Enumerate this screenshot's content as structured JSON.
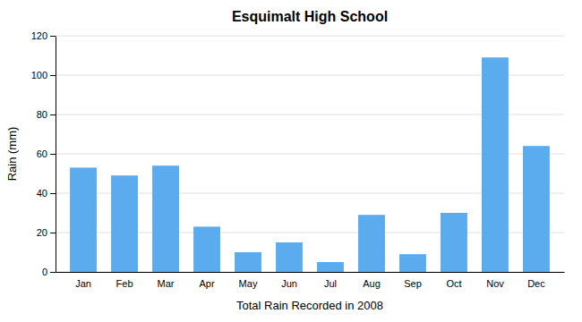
{
  "chart_data": {
    "type": "bar",
    "title": "Esquimalt High School",
    "xlabel": "Total Rain Recorded in 2008",
    "ylabel": "Rain (mm)",
    "categories": [
      "Jan",
      "Feb",
      "Mar",
      "Apr",
      "May",
      "Jun",
      "Jul",
      "Aug",
      "Sep",
      "Oct",
      "Nov",
      "Dec"
    ],
    "values": [
      53,
      49,
      54,
      23,
      10,
      15,
      5,
      29,
      9,
      30,
      109,
      64
    ],
    "color": "#5AACEE",
    "ylim": [
      0,
      120
    ],
    "yticks": [
      0,
      20,
      40,
      60,
      80,
      100,
      120
    ],
    "grid": true
  }
}
